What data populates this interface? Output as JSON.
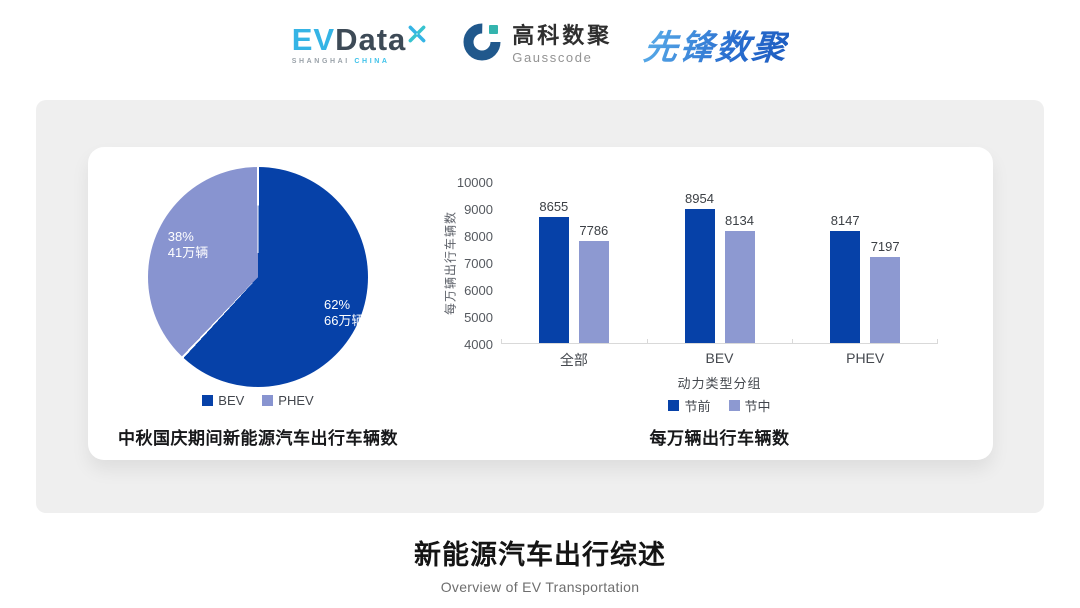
{
  "header": {
    "evdata": {
      "ev": "EV",
      "data": "Data",
      "location_1": "SHANGHAI",
      "location_2": "CHINA"
    },
    "gausscode": {
      "name_cn": "高科数聚",
      "name_en": "Gausscode"
    },
    "xianfeng": {
      "name": "先锋数聚"
    }
  },
  "colors": {
    "primary_blue": "#0641a8",
    "pie_light_blue": "#8894d0",
    "bar_light_blue": "#8d99d1",
    "legend_light_blue": "#99a4da",
    "panel_gray": "#efefef"
  },
  "chart_data": [
    {
      "type": "pie",
      "title": "中秋国庆期间新能源汽车出行车辆数",
      "slices": [
        {
          "label": "BEV",
          "percent": 62,
          "percent_label": "62%",
          "value_label": "66万辆",
          "color": "#0641a8"
        },
        {
          "label": "PHEV",
          "percent": 38,
          "percent_label": "38%",
          "value_label": "41万辆",
          "color": "#8894d0"
        }
      ],
      "legend": [
        "BEV",
        "PHEV"
      ],
      "legend_position": "bottom"
    },
    {
      "type": "bar",
      "title": "每万辆出行车辆数",
      "categories": [
        "全部",
        "BEV",
        "PHEV"
      ],
      "series": [
        {
          "name": "节前",
          "color": "#0641a8",
          "values": [
            8655,
            8954,
            8147
          ]
        },
        {
          "name": "节中",
          "color": "#8d99d1",
          "values": [
            7786,
            8134,
            7197
          ]
        }
      ],
      "xlabel": "动力类型分组",
      "ylabel": "每万辆出行车辆数",
      "ylim": [
        4000,
        10000
      ],
      "ytick_step": 1000,
      "grid": false,
      "legend_position": "bottom"
    }
  ],
  "footer": {
    "title": "新能源汽车出行综述",
    "subtitle": "Overview of EV Transportation"
  }
}
